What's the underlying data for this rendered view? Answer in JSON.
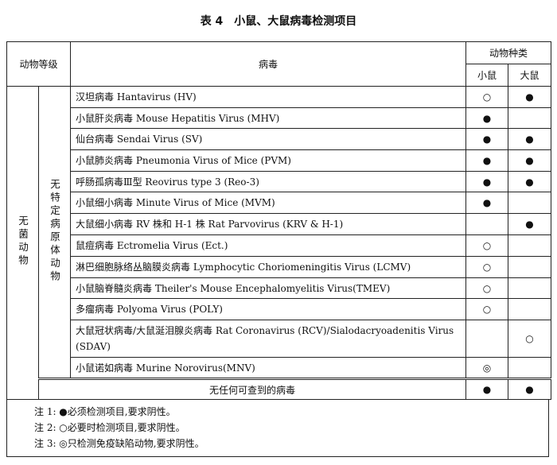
{
  "title": "表 4　小鼠、大鼠病毒检测项目",
  "header": {
    "grade": "动物等级",
    "virus": "病毒",
    "species": "动物种类",
    "mouse": "小鼠",
    "rat": "大鼠"
  },
  "group": {
    "level1": "无菌动物",
    "level2": "无特定病原体动物"
  },
  "rows": [
    {
      "name": "汉坦病毒 Hantavirus (HV)",
      "mouse": "○",
      "rat": "●"
    },
    {
      "name": "小鼠肝炎病毒 Mouse Hepatitis Virus (MHV)",
      "mouse": "●",
      "rat": ""
    },
    {
      "name": "仙台病毒 Sendai Virus (SV)",
      "mouse": "●",
      "rat": "●"
    },
    {
      "name": "小鼠肺炎病毒 Pneumonia Virus of Mice (PVM)",
      "mouse": "●",
      "rat": "●"
    },
    {
      "name": "呼肠孤病毒Ⅲ型 Reovirus type 3 (Reo-3)",
      "mouse": "●",
      "rat": "●"
    },
    {
      "name": "小鼠细小病毒 Minute Virus of Mice (MVM)",
      "mouse": "●",
      "rat": ""
    },
    {
      "name": "大鼠细小病毒 RV 株和 H-1 株 Rat Parvovirus (KRV & H-1)",
      "mouse": "",
      "rat": "●"
    },
    {
      "name": "鼠痘病毒 Ectromelia Virus (Ect.)",
      "mouse": "○",
      "rat": ""
    },
    {
      "name": "淋巴细胞脉络丛脑膜炎病毒 Lymphocytic Choriomeningitis Virus (LCMV)",
      "mouse": "○",
      "rat": ""
    },
    {
      "name": "小鼠脑脊髓炎病毒 Theiler's Mouse Encephalomyelitis Virus(TMEV)",
      "mouse": "○",
      "rat": ""
    },
    {
      "name": "多瘤病毒 Polyoma Virus (POLY)",
      "mouse": "○",
      "rat": ""
    },
    {
      "name": "大鼠冠状病毒/大鼠涎泪腺炎病毒 Rat Coronavirus (RCV)/Sialodacryoadenitis Virus (SDAV)",
      "mouse": "",
      "rat": "○"
    },
    {
      "name": "小鼠诺如病毒 Murine Norovirus(MNV)",
      "mouse": "◎",
      "rat": ""
    }
  ],
  "total": {
    "name": "无任何可查到的病毒",
    "mouse": "●",
    "rat": "●"
  },
  "notes": [
    "注 1: ●必须检测项目,要求阴性。",
    "注 2: ○必要时检测项目,要求阴性。",
    "注 3: ◎只检测免疫缺陷动物,要求阴性。"
  ]
}
